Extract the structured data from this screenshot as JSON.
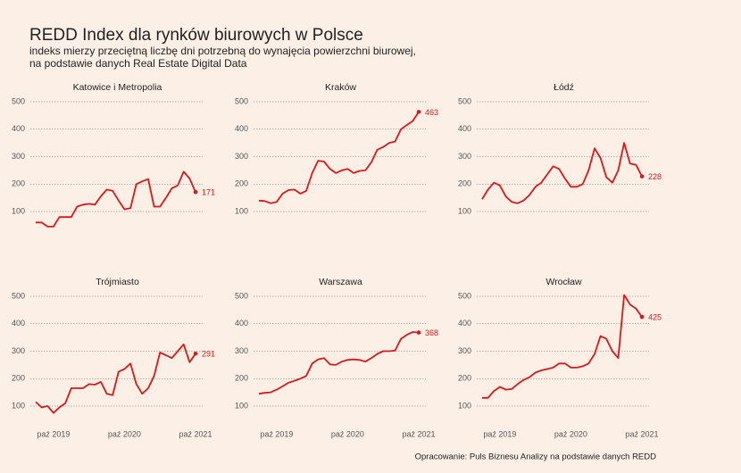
{
  "title": "REDD Index dla rynków biurowych w Polsce",
  "subtitle": [
    "indeks mierzy przeciętną liczbę dni potrzebną do wynajęcia powierzchni biurowej,",
    "na podstawie danych Real Estate Digital Data"
  ],
  "caption": "Opracowanie: Puls Biznesu Analizy na podstawie danych REDD",
  "x": [
    "2019-07",
    "2019-08",
    "2019-09",
    "2019-10",
    "2019-11",
    "2019-12",
    "2020-01",
    "2020-02",
    "2020-03",
    "2020-04",
    "2020-05",
    "2020-06",
    "2020-07",
    "2020-08",
    "2020-09",
    "2020-10",
    "2020-11",
    "2020-12",
    "2021-01",
    "2021-02",
    "2021-03",
    "2021-04",
    "2021-05",
    "2021-06",
    "2021-07",
    "2021-08",
    "2021-09",
    "2021-10"
  ],
  "xticks": [
    {
      "value": "2019-10",
      "label": "paź 2019"
    },
    {
      "value": "2020-10",
      "label": "paź 2020"
    },
    {
      "value": "2021-10",
      "label": "paź 2021"
    }
  ],
  "ylim": [
    30,
    520
  ],
  "yticks": [
    100,
    200,
    300,
    400,
    500
  ],
  "grid": true,
  "color": "#d7191c",
  "chart_data": [
    {
      "type": "line",
      "title": "Katowice i Metropolia",
      "values": [
        60,
        60,
        45,
        45,
        80,
        80,
        80,
        118,
        125,
        128,
        125,
        155,
        180,
        175,
        140,
        108,
        112,
        200,
        210,
        218,
        118,
        118,
        150,
        185,
        195,
        245,
        220,
        171
      ]
    },
    {
      "type": "line",
      "title": "Kraków",
      "values": [
        140,
        138,
        130,
        135,
        165,
        178,
        180,
        165,
        175,
        240,
        285,
        282,
        255,
        240,
        250,
        255,
        240,
        248,
        250,
        280,
        325,
        335,
        350,
        355,
        400,
        415,
        430,
        463
      ]
    },
    {
      "type": "line",
      "title": "Łódź",
      "values": [
        145,
        180,
        205,
        195,
        155,
        135,
        130,
        140,
        160,
        190,
        205,
        235,
        265,
        255,
        220,
        190,
        190,
        200,
        250,
        330,
        295,
        225,
        205,
        250,
        350,
        275,
        270,
        228
      ]
    },
    {
      "type": "line",
      "title": "Trójmiasto",
      "values": [
        115,
        95,
        100,
        75,
        95,
        110,
        165,
        165,
        165,
        180,
        178,
        188,
        145,
        140,
        225,
        235,
        255,
        180,
        145,
        165,
        210,
        295,
        285,
        275,
        300,
        325,
        260,
        291
      ]
    },
    {
      "type": "line",
      "title": "Warszawa",
      "values": [
        145,
        148,
        150,
        160,
        172,
        185,
        192,
        200,
        210,
        255,
        270,
        275,
        252,
        250,
        262,
        268,
        270,
        268,
        262,
        275,
        290,
        300,
        300,
        302,
        345,
        360,
        370,
        368
      ]
    },
    {
      "type": "line",
      "title": "Wrocław",
      "values": [
        130,
        130,
        155,
        170,
        160,
        162,
        180,
        195,
        205,
        222,
        230,
        235,
        240,
        255,
        255,
        240,
        240,
        245,
        255,
        290,
        355,
        345,
        300,
        275,
        505,
        470,
        455,
        425
      ]
    }
  ]
}
